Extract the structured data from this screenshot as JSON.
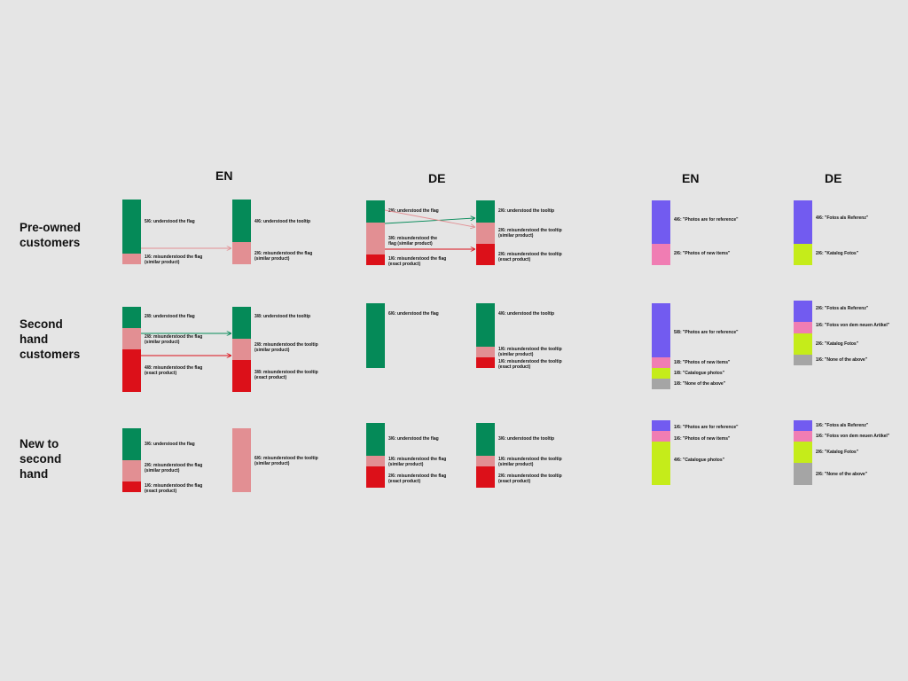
{
  "colors": {
    "understood": "#058a58",
    "misunderstood_similar": "#e28f93",
    "misunderstood_exact": "#dc1019",
    "photos_reference": "#725bf0",
    "photos_new_items": "#f07db3",
    "catalogue_photos": "#c5ec1a",
    "none_of_above": "#a5a5a5"
  },
  "headers": [
    "EN",
    "DE",
    "EN",
    "DE"
  ],
  "row_labels": [
    "Pre-owned\ncustomers",
    "Second\nhand\ncustomers",
    "New to\nsecond\nhand"
  ],
  "bars": [
    {
      "id": "r1-en-flag",
      "labels": [
        "5/6: understood the flag",
        "1/6: misunderstood the flag\n(similar product)"
      ]
    },
    {
      "id": "r1-en-tip",
      "labels": [
        "4/6: understood the tooltip",
        "2/6: misunderstood the flag\n(similar product)"
      ]
    },
    {
      "id": "r1-de-flag",
      "labels": [
        "2/6: understood the flag",
        "3/6: misunderstood the\nflag (similar product)",
        "1/6: misunderstood the flag\n(exact product)"
      ]
    },
    {
      "id": "r1-de-tip",
      "labels": [
        "2/6: understood the tooltip",
        "2/6: misunderstood the tooltip\n(similar product)",
        "2/6: misunderstood the tooltip\n(exact product)"
      ]
    },
    {
      "id": "r1-en-photo",
      "labels": [
        "4/6: \"Photos are for reference\"",
        "2/6: \"Photos of new items\""
      ]
    },
    {
      "id": "r1-de-photo",
      "labels": [
        "4/6: \"Fotos als Referenz\"",
        "2/6: \"Katalog Fotos\""
      ]
    },
    {
      "id": "r2-en-flag",
      "labels": [
        "2/8: understood the flag",
        "2/8: misunderstood the flag\n(similar product)",
        "4/8: misunderstood the flag\n(exact product)"
      ]
    },
    {
      "id": "r2-en-tip",
      "labels": [
        "3/8: understood the tooltip",
        "2/8: misunderstood the tooltip\n(similar product)",
        "3/8: misunderstood the tooltip\n(exact product)"
      ]
    },
    {
      "id": "r2-de-flag",
      "labels": [
        "6/6: understood the flag"
      ]
    },
    {
      "id": "r2-de-tip",
      "labels": [
        "4/6: understood the tooltip",
        "1/6: misunderstood the tooltip\n(similar product)",
        "1/6: misunderstood the tooltip\n(exact product)"
      ]
    },
    {
      "id": "r2-en-photo",
      "labels": [
        "5/8: \"Photos are for reference\"",
        "1/8: \"Photos of new items\"",
        "1/8: \"Catalogue photos\"",
        "1/8: \"None of the above\""
      ]
    },
    {
      "id": "r2-de-photo",
      "labels": [
        "2/6: \"Fotos als Referenz\"",
        "1/6: \"Fotos von dem neuen Artikel\"",
        "2/6: \"Katalog Fotos\"",
        "1/6: \"None of the above\""
      ]
    },
    {
      "id": "r3-en-flag",
      "labels": [
        "3/6: understood the flag",
        "2/6: misunderstood the flag\n(similar product)",
        "1/6: misunderstood the flag\n(exact product)"
      ]
    },
    {
      "id": "r3-en-tip",
      "labels": [
        "6/6: misunderstood the tooltip\n(similar product)"
      ]
    },
    {
      "id": "r3-de-flag",
      "labels": [
        "3/6: understood the flag",
        "1/6: misunderstood the flag\n(similar product)",
        "2/6: misunderstood the flag\n(exact product)"
      ]
    },
    {
      "id": "r3-de-tip",
      "labels": [
        "3/6: understood the tooltip",
        "1/6: misunderstood the tooltip\n(similar product)",
        "2/6: misunderstood the tooltip\n(exact product)"
      ]
    },
    {
      "id": "r3-en-photo",
      "labels": [
        "1/6: \"Photos are for reference\"",
        "1/6: \"Photos of new items\"",
        "4/6: \"Catalogue photos\""
      ]
    },
    {
      "id": "r3-de-photo",
      "labels": [
        "1/6: \"Fotos als Referenz\"",
        "1/6: \"Fotos von dem neuen Artikel\"",
        "2/6: \"Katalog Fotos\"",
        "2/6: \"None of the above\""
      ]
    }
  ]
}
